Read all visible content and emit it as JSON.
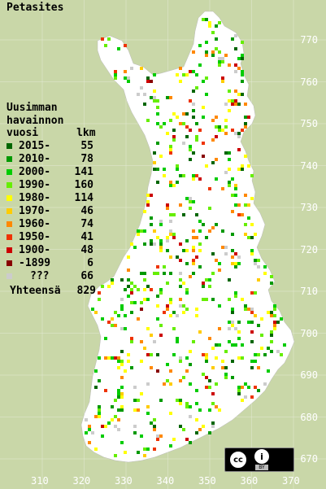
{
  "map": {
    "species": "Petasites",
    "legend_heading": "Uusimman\nhavainnon\nvuosi      lkm",
    "legend": [
      {
        "period": "2015-",
        "count": "55",
        "color": "#006600"
      },
      {
        "period": "2010-",
        "count": "78",
        "color": "#009900"
      },
      {
        "period": "2000-",
        "count": "141",
        "color": "#00cc00"
      },
      {
        "period": "1990-",
        "count": "160",
        "color": "#66ee00"
      },
      {
        "period": "1980-",
        "count": "114",
        "color": "#ffff00"
      },
      {
        "period": "1970-",
        "count": "46",
        "color": "#ffcc00"
      },
      {
        "period": "1960-",
        "count": "74",
        "color": "#ff8800"
      },
      {
        "period": "1950-",
        "count": "41",
        "color": "#ee3300"
      },
      {
        "period": "1900-",
        "count": "48",
        "color": "#cc0000"
      },
      {
        "period": "-1899",
        "count": "6",
        "color": "#880000"
      },
      {
        "period": "???",
        "count": "66",
        "color": "#cccccc"
      }
    ],
    "total_label": "Yhteensä",
    "total_count": "829",
    "grid_y_labels": [
      "770",
      "760",
      "750",
      "740",
      "730",
      "720",
      "710",
      "700",
      "690",
      "680",
      "670"
    ],
    "grid_x_labels": [
      "310",
      "320",
      "330",
      "340",
      "350",
      "360",
      "370"
    ],
    "license": {
      "cc_text": "cc",
      "by_icon": "i",
      "by_text": "BY"
    }
  }
}
